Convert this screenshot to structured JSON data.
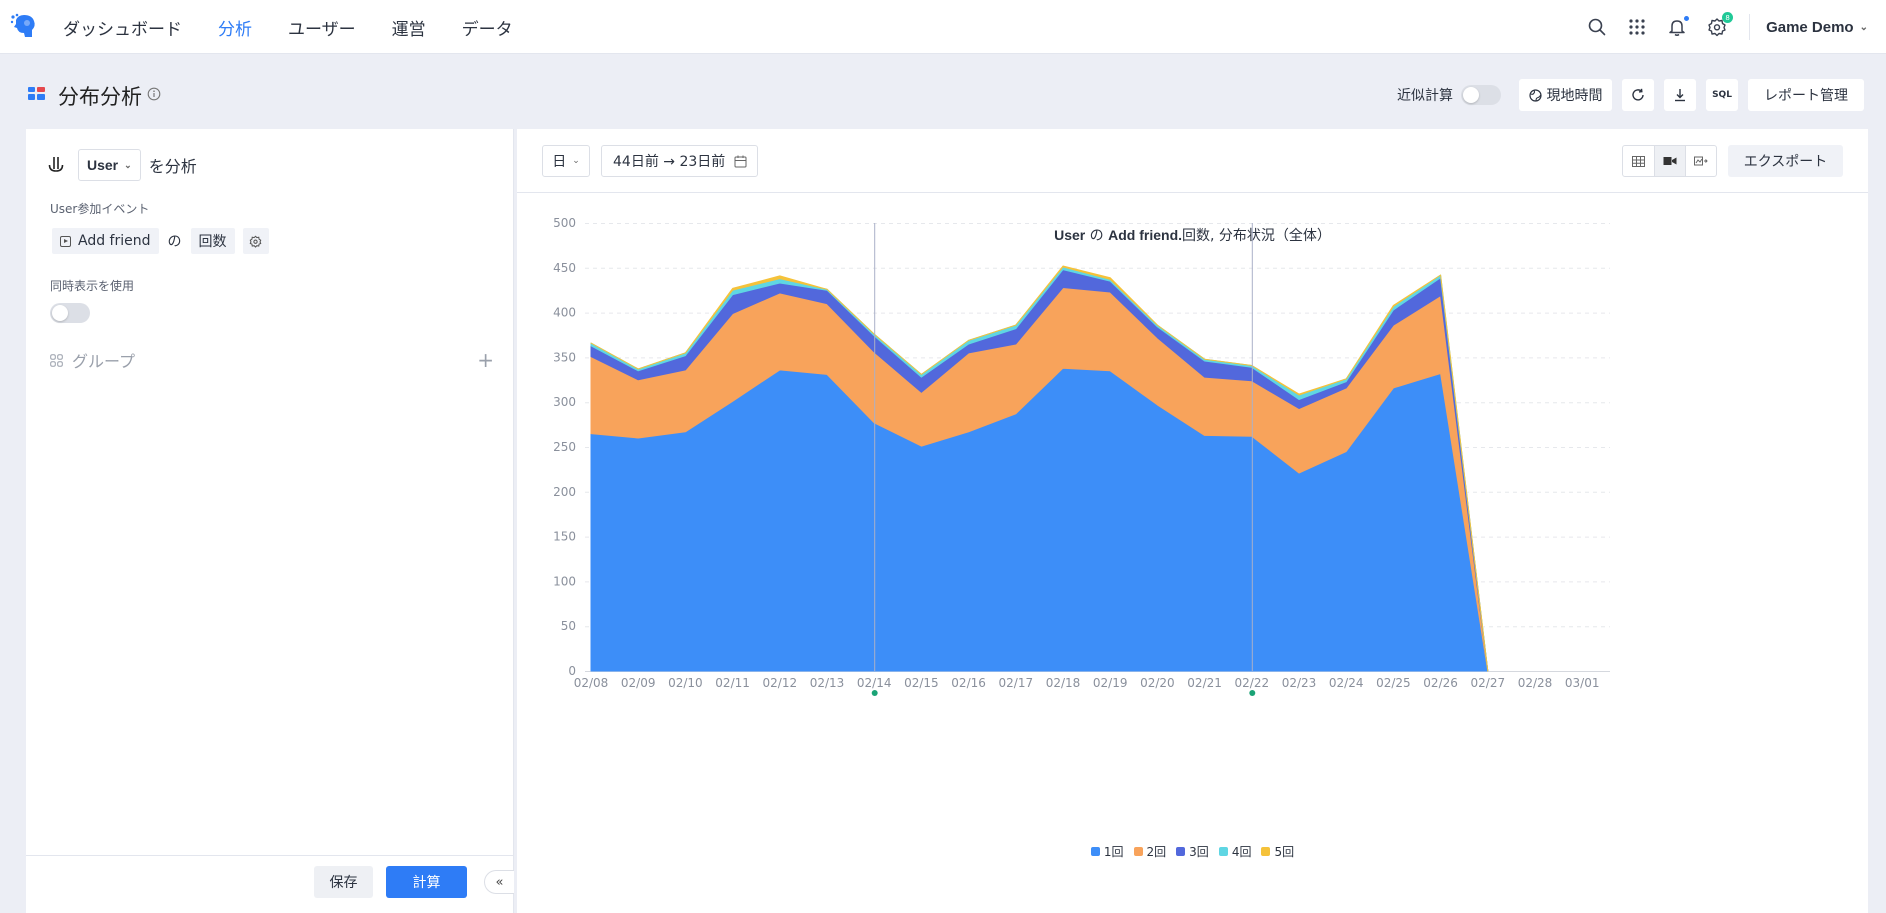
{
  "nav": {
    "items": [
      {
        "label": "ダッシュボード",
        "active": false
      },
      {
        "label": "分析",
        "active": true
      },
      {
        "label": "ユーザー",
        "active": false
      },
      {
        "label": "運営",
        "active": false
      },
      {
        "label": "データ",
        "active": false
      }
    ],
    "settings_badge": "8",
    "project": "Game Demo",
    "accent_color": "#2e7cf6"
  },
  "header": {
    "title": "分布分析",
    "approx_label": "近似計算",
    "approx_on": false,
    "timezone_label": "現地時間",
    "sql_label": "SQL",
    "report_label": "レポート管理"
  },
  "left": {
    "entity": "User",
    "analyze_suffix": "を分析",
    "event_section_label": "User参加イベント",
    "event_name": "Add friend",
    "of_text": "の",
    "metric": "回数",
    "sim_label": "同時表示を使用",
    "sim_on": false,
    "group_label": "グループ",
    "save_label": "保存",
    "calc_label": "計算"
  },
  "toolbar": {
    "granularity": "日",
    "date_range": "44日前 → 23日前",
    "export_label": "エクスポート"
  },
  "chart_title": {
    "entity": "User",
    "of_text": " の ",
    "event": "Add friend.",
    "rest": "回数,  分布状況（全体）"
  },
  "chart_data": {
    "type": "area",
    "stacked": true,
    "title": "User の Add friend.回数,  分布状況（全体）",
    "categories": [
      "02/08",
      "02/09",
      "02/10",
      "02/11",
      "02/12",
      "02/13",
      "02/14",
      "02/15",
      "02/16",
      "02/17",
      "02/18",
      "02/19",
      "02/20",
      "02/21",
      "02/22",
      "02/23",
      "02/24",
      "02/25",
      "02/26",
      "02/27",
      "02/28",
      "03/01"
    ],
    "series": [
      {
        "name": "1回",
        "color": "#3d8ef8",
        "values": [
          265,
          260,
          267,
          301,
          336,
          331,
          277,
          251,
          267,
          287,
          338,
          335,
          297,
          263,
          262,
          221,
          245,
          316,
          332,
          0,
          null,
          null
        ]
      },
      {
        "name": "2回",
        "color": "#f8a35b",
        "values": [
          86,
          65,
          69,
          98,
          86,
          79,
          79,
          60,
          88,
          78,
          90,
          88,
          75,
          65,
          62,
          72,
          71,
          70,
          87,
          0,
          null,
          null
        ]
      },
      {
        "name": "3回",
        "color": "#5268dc",
        "values": [
          12,
          10,
          16,
          21,
          11,
          15,
          18,
          17,
          10,
          17,
          20,
          12,
          12,
          18,
          15,
          10,
          7,
          17,
          20,
          0,
          null,
          null
        ]
      },
      {
        "name": "4回",
        "color": "#5fd6e3",
        "values": [
          3,
          2,
          3,
          5,
          5,
          1,
          2,
          3,
          4,
          4,
          3,
          2,
          2,
          2,
          2,
          5,
          3,
          4,
          3,
          0,
          null,
          null
        ]
      },
      {
        "name": "5回",
        "color": "#f5c23a",
        "values": [
          0,
          0,
          0,
          2,
          3,
          0,
          0,
          0,
          0,
          0,
          1,
          2,
          0,
          0,
          0,
          1,
          0,
          1,
          0,
          0,
          null,
          null
        ]
      }
    ],
    "ylim": [
      0,
      500
    ],
    "yticks": [
      0,
      50,
      100,
      150,
      200,
      250,
      300,
      350,
      400,
      450,
      500
    ],
    "markers": [
      "02/14",
      "02/22"
    ],
    "grid": true,
    "legend": "bottom"
  }
}
